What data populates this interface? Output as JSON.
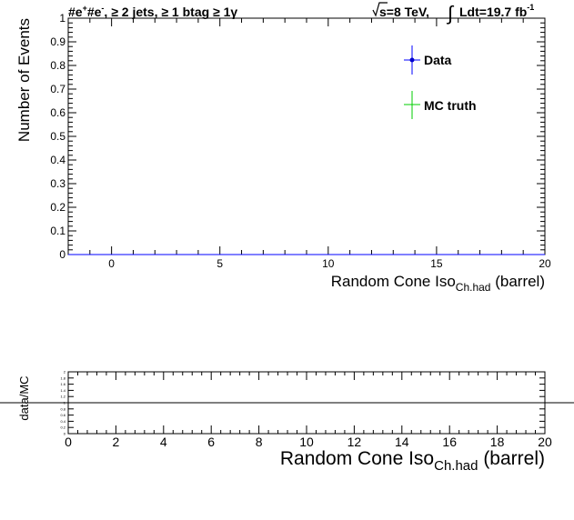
{
  "header": {
    "channel": "#e",
    "channel_sup1": "+",
    "channel_mid": "#e",
    "channel_sup2": "-",
    "selection": ", ≥ 2 jets, ≥ 1 btag ≥ 1γ",
    "energy_sqrt": "s",
    "energy_rest": "=8 TeV,",
    "lumi_text": "Ldt=19.7 fb",
    "lumi_sup": "-1"
  },
  "chart_data": [
    {
      "type": "line",
      "panel": "main",
      "ylabel": "Number of Events",
      "xlabel_main": "Random Cone Iso",
      "xlabel_sub": "Ch.had",
      "xlabel_tail": " (barrel)",
      "xlim": [
        -2,
        20
      ],
      "ylim": [
        0,
        1
      ],
      "x_ticks": [
        0,
        5,
        10,
        15,
        20
      ],
      "y_ticks": [
        0,
        0.1,
        0.2,
        0.3,
        0.4,
        0.5,
        0.6,
        0.7,
        0.8,
        0.9,
        1
      ],
      "y_tick_labels": [
        "0",
        "0.1",
        "0.2",
        "0.3",
        "0.4",
        "0.5",
        "0.6",
        "0.7",
        "0.8",
        "0.9",
        "1"
      ],
      "grid": false,
      "legend_position": "top-right",
      "series": [
        {
          "name": "Data",
          "color": "#0000ff",
          "marker": "dot",
          "x": [
            -2,
            20
          ],
          "y": [
            0,
            0
          ]
        },
        {
          "name": "MC truth",
          "color": "#00cc00",
          "marker": "cross",
          "x": [],
          "y": []
        }
      ]
    },
    {
      "type": "line",
      "panel": "ratio",
      "ylabel": "data/MC",
      "xlabel_main": "Random Cone Iso",
      "xlabel_sub": "Ch.had",
      "xlabel_tail": " (barrel)",
      "xlim": [
        0,
        20
      ],
      "ylim": [
        0,
        2
      ],
      "x_ticks": [
        0,
        2,
        4,
        6,
        8,
        10,
        12,
        14,
        16,
        18,
        20
      ],
      "y_ticks": [
        0,
        0.2,
        0.4,
        0.6,
        0.8,
        1,
        1.2,
        1.4,
        1.6,
        1.8,
        2
      ],
      "y_tick_labels": [
        "0",
        "0.2",
        "0.4",
        "0.6",
        "0.8",
        "1",
        "1.2",
        "1.4",
        "1.6",
        "1.8",
        "2"
      ],
      "reference_line": 1
    }
  ]
}
